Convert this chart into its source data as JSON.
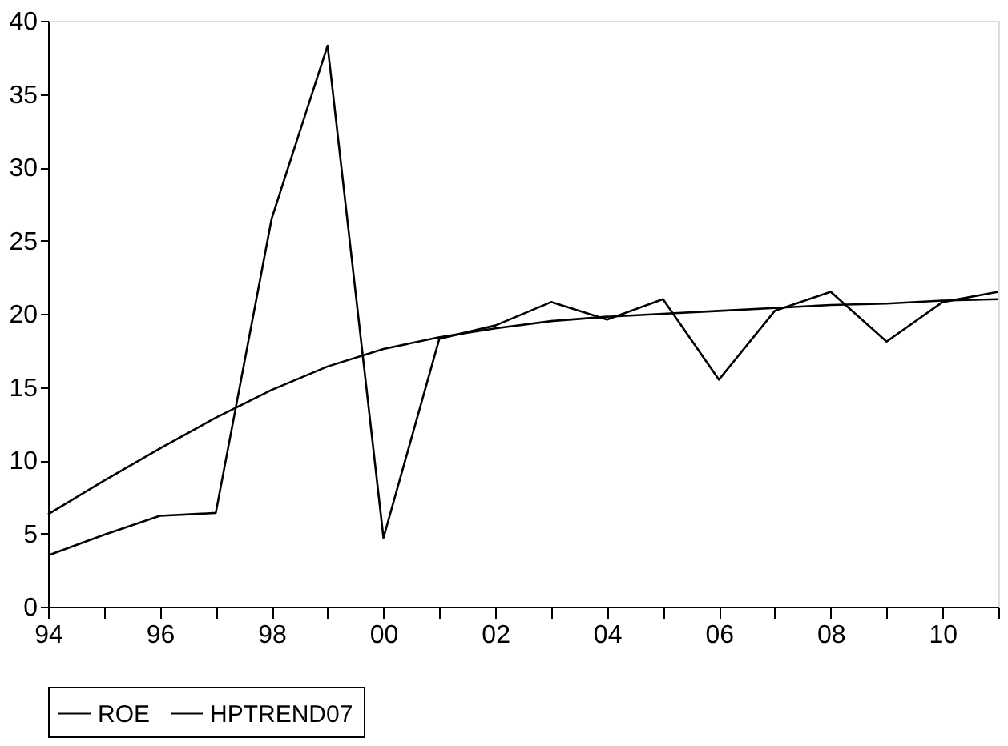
{
  "chart_data": {
    "type": "line",
    "x": [
      1994,
      1995,
      1996,
      1997,
      1998,
      1999,
      2000,
      2001,
      2002,
      2003,
      2004,
      2005,
      2006,
      2007,
      2008,
      2009,
      2010,
      2011
    ],
    "series": [
      {
        "name": "ROE",
        "color": "#000000",
        "values": [
          3.5,
          4.9,
          6.2,
          6.4,
          26.5,
          38.3,
          4.7,
          18.3,
          19.2,
          20.8,
          19.6,
          21.0,
          15.5,
          20.2,
          21.5,
          18.1,
          20.8,
          21.5
        ]
      },
      {
        "name": "HPTREND07",
        "color": "#000000",
        "values": [
          6.3,
          8.6,
          10.8,
          12.9,
          14.8,
          16.4,
          17.6,
          18.4,
          19.0,
          19.5,
          19.8,
          20.0,
          20.2,
          20.4,
          20.6,
          20.7,
          20.9,
          21.0
        ]
      }
    ],
    "xlim": [
      1994,
      2011
    ],
    "xticks": [
      {
        "value": 1994,
        "label": "94"
      },
      {
        "value": 1995,
        "label": null
      },
      {
        "value": 1996,
        "label": "96"
      },
      {
        "value": 1997,
        "label": null
      },
      {
        "value": 1998,
        "label": "98"
      },
      {
        "value": 1999,
        "label": null
      },
      {
        "value": 2000,
        "label": "00"
      },
      {
        "value": 2001,
        "label": null
      },
      {
        "value": 2002,
        "label": "02"
      },
      {
        "value": 2003,
        "label": null
      },
      {
        "value": 2004,
        "label": "04"
      },
      {
        "value": 2005,
        "label": null
      },
      {
        "value": 2006,
        "label": "06"
      },
      {
        "value": 2007,
        "label": null
      },
      {
        "value": 2008,
        "label": "08"
      },
      {
        "value": 2009,
        "label": null
      },
      {
        "value": 2010,
        "label": "10"
      },
      {
        "value": 2011,
        "label": null
      }
    ],
    "ylim": [
      0,
      40
    ],
    "yticks": [
      0,
      5,
      10,
      15,
      20,
      25,
      30,
      35,
      40
    ],
    "grid": false,
    "legend": "bottom",
    "marker": "none",
    "line_style": "solid"
  }
}
